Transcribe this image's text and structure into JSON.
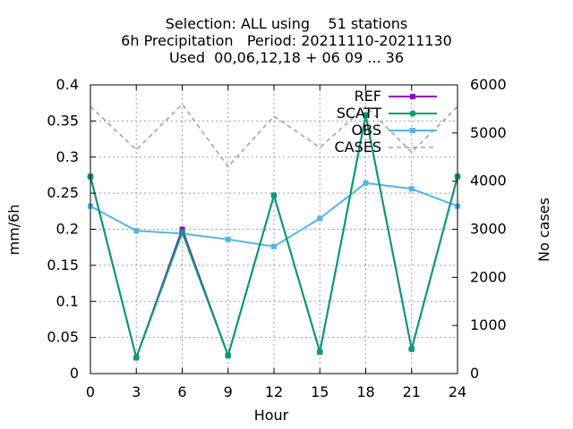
{
  "chart_data": {
    "type": "line",
    "title": [
      "Selection: ALL using    51 stations",
      "6h Precipitation   Period: 20211110-20211130",
      "Used  00,06,12,18 + 06 09 ... 36"
    ],
    "xlabel": "Hour",
    "ylabel": "mm/6h",
    "y2label": "No cases",
    "x": [
      0,
      3,
      6,
      9,
      12,
      15,
      18,
      21,
      24
    ],
    "xlim": [
      0,
      24
    ],
    "ylim": [
      0,
      0.4
    ],
    "y2lim": [
      0,
      6000
    ],
    "x_ticks": [
      "0",
      "3",
      "6",
      "9",
      "12",
      "15",
      "18",
      "21",
      "24"
    ],
    "y_ticks": [
      "0",
      "0.05",
      "0.1",
      "0.15",
      "0.2",
      "0.25",
      "0.3",
      "0.35",
      "0.4"
    ],
    "y2_ticks": [
      "0",
      "1000",
      "2000",
      "3000",
      "4000",
      "5000",
      "6000"
    ],
    "grid": true,
    "legend_position": "top-right",
    "series": [
      {
        "name": "REF",
        "axis": "y",
        "color": "#9400d3",
        "marker": "square",
        "values": [
          0.273,
          0.022,
          0.2,
          0.025,
          0.247,
          0.03,
          0.358,
          0.034,
          0.273
        ]
      },
      {
        "name": "SCATT",
        "axis": "y",
        "color": "#009e73",
        "marker": "circle",
        "values": [
          0.273,
          0.022,
          0.196,
          0.025,
          0.247,
          0.03,
          0.358,
          0.034,
          0.273
        ]
      },
      {
        "name": "OBS",
        "axis": "y",
        "color": "#56b4e9",
        "marker": "square",
        "values": [
          0.232,
          0.198,
          0.194,
          0.186,
          0.176,
          0.215,
          0.264,
          0.256,
          0.232
        ]
      },
      {
        "name": "CASES",
        "axis": "y2",
        "color": "#a0a0a0",
        "dashed": true,
        "marker": "none",
        "values": [
          5550,
          4650,
          5600,
          4300,
          5350,
          4700,
          5550,
          4600,
          5550
        ]
      }
    ]
  }
}
